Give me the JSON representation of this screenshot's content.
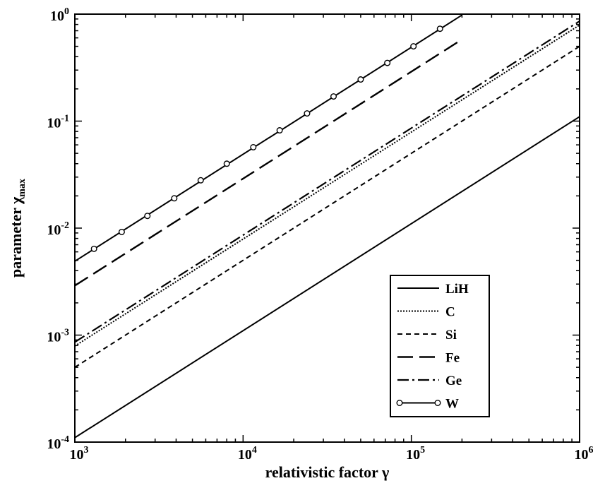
{
  "chart_data": {
    "type": "line",
    "xlabel": {
      "main": "relativistic factor ",
      "symbol": "γ"
    },
    "ylabel": {
      "main": "parameter ",
      "symbol": "χ",
      "subscript": "max"
    },
    "xscale": "log",
    "yscale": "log",
    "xlim": [
      1000,
      1000000
    ],
    "ylim": [
      0.0001,
      1
    ],
    "x_ticks": [
      {
        "base": "10",
        "exp": "3",
        "value": 1000
      },
      {
        "base": "10",
        "exp": "4",
        "value": 10000
      },
      {
        "base": "10",
        "exp": "5",
        "value": 100000
      },
      {
        "base": "10",
        "exp": "6",
        "value": 1000000
      }
    ],
    "y_ticks": [
      {
        "base": "10",
        "exp": "-4",
        "value": 0.0001
      },
      {
        "base": "10",
        "exp": "-3",
        "value": 0.001
      },
      {
        "base": "10",
        "exp": "-2",
        "value": 0.01
      },
      {
        "base": "10",
        "exp": "-1",
        "value": 0.1
      },
      {
        "base": "10",
        "exp": "0",
        "value": 1
      }
    ],
    "grid": false,
    "legend_position": "lower-right",
    "series": [
      {
        "name": "LiH",
        "style": "solid",
        "marker": "none",
        "x": [
          1000,
          1000000
        ],
        "y": [
          0.00011,
          0.11
        ]
      },
      {
        "name": "C",
        "style": "dotted",
        "marker": "none",
        "x": [
          1000,
          1000000
        ],
        "y": [
          0.00079,
          0.79
        ]
      },
      {
        "name": "Si",
        "style": "dashed",
        "marker": "none",
        "x": [
          1000,
          1000000
        ],
        "y": [
          0.0005,
          0.5
        ]
      },
      {
        "name": "Fe",
        "style": "longdash",
        "marker": "none",
        "x": [
          1000,
          200000
        ],
        "y": [
          0.0029,
          0.58
        ]
      },
      {
        "name": "Ge",
        "style": "dashdot",
        "marker": "none",
        "x": [
          1000,
          1000000
        ],
        "y": [
          0.00086,
          0.86
        ]
      },
      {
        "name": "W",
        "style": "solid",
        "marker": "open-circle",
        "x": [
          1000,
          200000
        ],
        "y": [
          0.0049,
          0.98
        ],
        "points": [
          [
            1300,
            0.0064
          ],
          [
            1900,
            0.0092
          ],
          [
            2700,
            0.013
          ],
          [
            3900,
            0.019
          ],
          [
            5600,
            0.028
          ],
          [
            8000,
            0.04
          ],
          [
            11500,
            0.057
          ],
          [
            16500,
            0.082
          ],
          [
            24000,
            0.118
          ],
          [
            34500,
            0.17
          ],
          [
            50000,
            0.245
          ],
          [
            72000,
            0.35
          ],
          [
            103000,
            0.5
          ],
          [
            148000,
            0.73
          ]
        ]
      }
    ]
  }
}
